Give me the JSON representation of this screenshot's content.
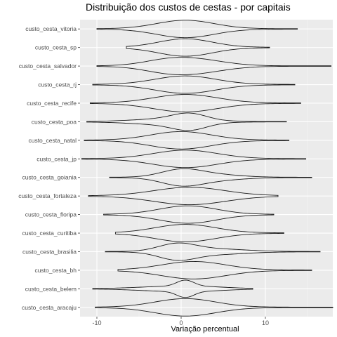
{
  "chart_data": {
    "type": "violin",
    "title": "Distribuição dos custos de cestas - por capitais",
    "xlabel": "Variação percentual",
    "ylabel": "",
    "xlim": [
      -12,
      18
    ],
    "xticks": [
      -10,
      0,
      10
    ],
    "grid": true,
    "legend": "none",
    "colors": {
      "panel": "#ebebeb",
      "grid_major": "#ffffff",
      "grid_minor": "#f4f4f4",
      "violin_stroke": "#1a1a1a",
      "tick_text": "#4d4d4d"
    },
    "categories": [
      "custo_cesta_vitoria",
      "custo_cesta_sp",
      "custo_cesta_salvador",
      "custo_cesta_rj",
      "custo_cesta_recife",
      "custo_cesta_poa",
      "custo_cesta_natal",
      "custo_cesta_jp",
      "custo_cesta_goiania",
      "custo_cesta_fortaleza",
      "custo_cesta_floripa",
      "custo_cesta_curitiba",
      "custo_cesta_brasilia",
      "custo_cesta_bh",
      "custo_cesta_belem",
      "custo_cesta_aracaju"
    ],
    "series": [
      {
        "min": -10.0,
        "max": 13.8,
        "peak": 0.5,
        "spread": 3.4,
        "modes": [
          [
            0.5,
            3.4,
            1.0
          ]
        ]
      },
      {
        "min": -6.5,
        "max": 10.5,
        "peak": 0.5,
        "spread": 3.2,
        "modes": [
          [
            0.5,
            3.2,
            1.0
          ]
        ]
      },
      {
        "min": -10.0,
        "max": 17.8,
        "peak": 0.0,
        "spread": 4.0,
        "modes": [
          [
            -1.5,
            3.0,
            0.7
          ],
          [
            2.5,
            3.2,
            0.6
          ]
        ]
      },
      {
        "min": -10.5,
        "max": 13.5,
        "peak": 0.5,
        "spread": 3.6,
        "modes": [
          [
            0.5,
            3.6,
            1.0
          ]
        ]
      },
      {
        "min": -10.8,
        "max": 14.2,
        "peak": 0.5,
        "spread": 3.8,
        "modes": [
          [
            0.5,
            3.8,
            1.0
          ]
        ]
      },
      {
        "min": -11.2,
        "max": 12.5,
        "peak": 1.0,
        "spread": 2.4,
        "modes": [
          [
            1.0,
            2.0,
            1.0
          ],
          [
            -1.5,
            4.0,
            0.45
          ]
        ]
      },
      {
        "min": -11.5,
        "max": 12.8,
        "peak": 0.0,
        "spread": 3.6,
        "modes": [
          [
            0.0,
            3.6,
            1.0
          ]
        ]
      },
      {
        "min": -11.8,
        "max": 14.8,
        "peak": 0.5,
        "spread": 3.8,
        "modes": [
          [
            0.5,
            3.8,
            1.0
          ]
        ]
      },
      {
        "min": -8.5,
        "max": 15.5,
        "peak": 0.0,
        "spread": 2.6,
        "modes": [
          [
            0.0,
            2.4,
            1.0
          ],
          [
            4.0,
            3.0,
            0.35
          ]
        ]
      },
      {
        "min": -11.0,
        "max": 11.5,
        "peak": 1.0,
        "spread": 4.2,
        "modes": [
          [
            1.0,
            4.2,
            1.0
          ]
        ]
      },
      {
        "min": -9.2,
        "max": 11.0,
        "peak": 0.8,
        "spread": 3.4,
        "modes": [
          [
            0.8,
            3.4,
            1.0
          ]
        ]
      },
      {
        "min": -7.8,
        "max": 12.2,
        "peak": 0.5,
        "spread": 3.6,
        "modes": [
          [
            0.5,
            3.6,
            1.0
          ]
        ]
      },
      {
        "min": -9.0,
        "max": 16.5,
        "peak": -0.5,
        "spread": 2.4,
        "modes": [
          [
            -0.5,
            2.2,
            1.0
          ],
          [
            4.0,
            3.5,
            0.35
          ]
        ]
      },
      {
        "min": -7.5,
        "max": 15.5,
        "peak": 1.5,
        "spread": 3.8,
        "modes": [
          [
            1.5,
            3.8,
            1.0
          ]
        ]
      },
      {
        "min": -10.5,
        "max": 8.5,
        "peak": 0.5,
        "spread": 1.2,
        "modes": [
          [
            0.5,
            1.0,
            1.0
          ],
          [
            -1.5,
            3.8,
            0.35
          ],
          [
            3.0,
            3.0,
            0.2
          ]
        ]
      },
      {
        "min": -10.2,
        "max": 18.0,
        "peak": 0.5,
        "spread": 3.6,
        "modes": [
          [
            0.5,
            3.6,
            1.0
          ]
        ]
      }
    ]
  }
}
